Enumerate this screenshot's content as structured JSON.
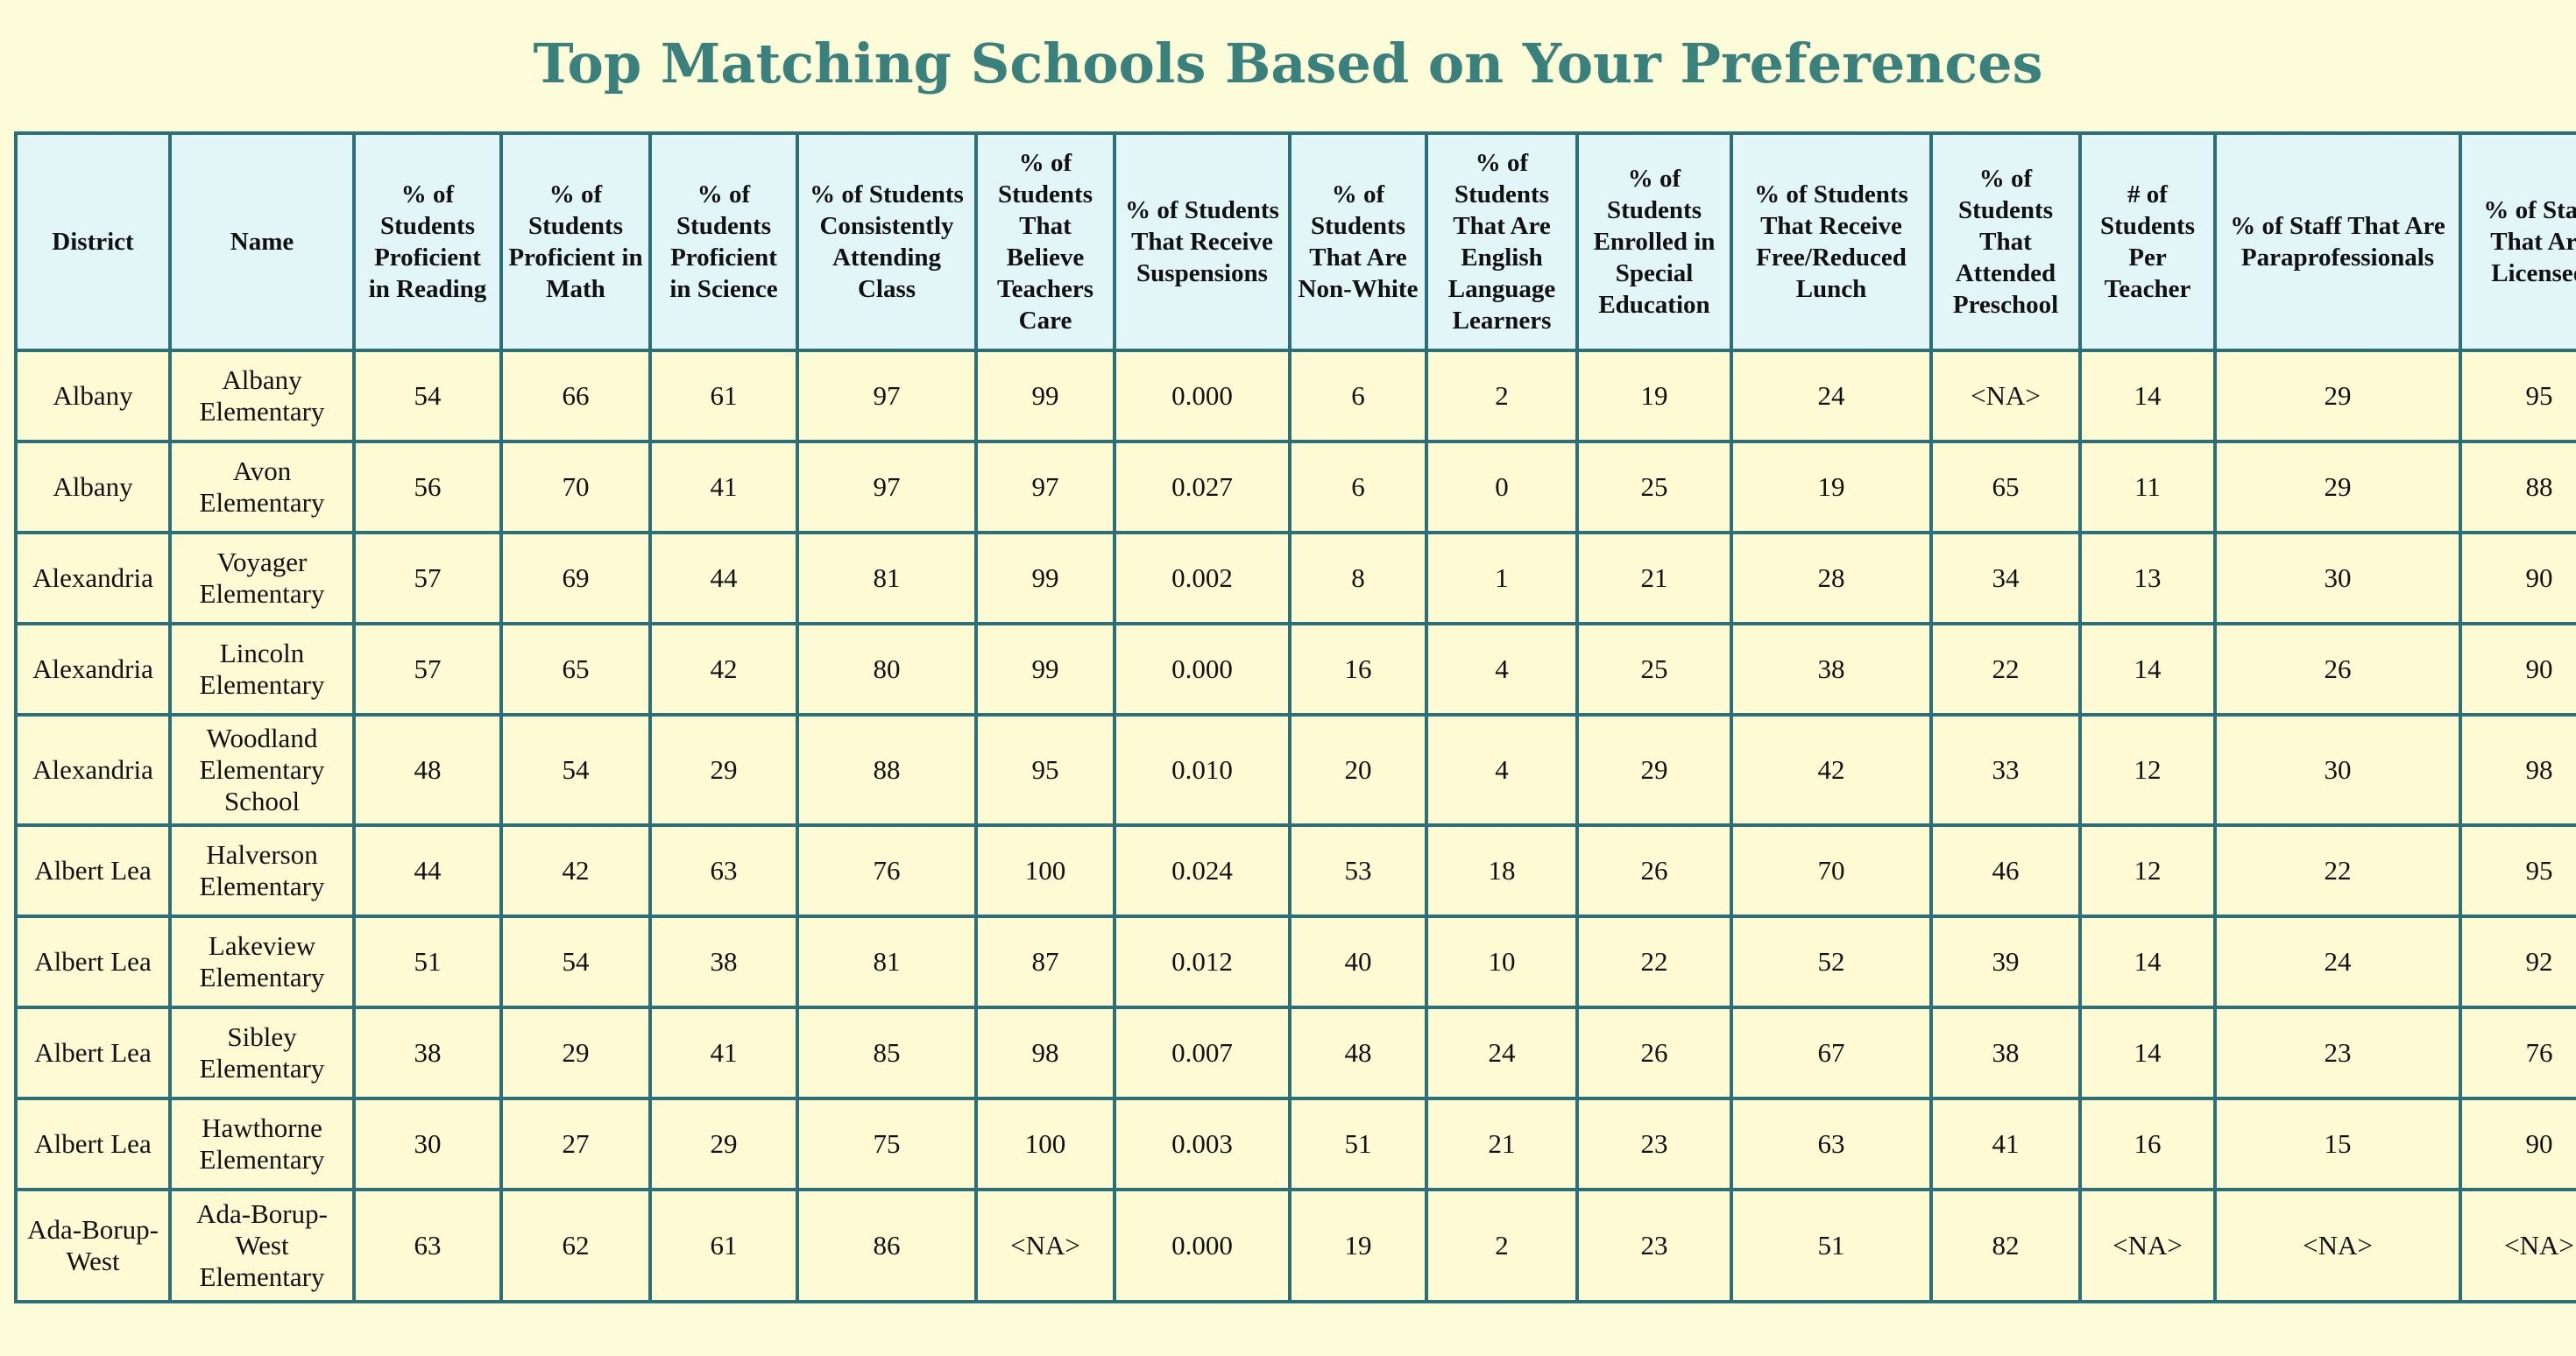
{
  "title": "Top Matching Schools Based on Your Preferences",
  "colors": {
    "background": "#fdfcd8",
    "title": "#3a807c",
    "header_background": "#e2f6f8",
    "border": "#2d6f79"
  },
  "table": {
    "columns": [
      "District",
      "Name",
      "% of Students Proficient in Reading",
      "% of Students Proficient in Math",
      "% of Students Proficient in Science",
      "% of Students Consistently Attending Class",
      "% of Students That Believe Teachers Care",
      "% of Students That Receive Suspensions",
      "% of Students That Are Non-White",
      "% of Students That Are English Language Learners",
      "% of Students Enrolled in Special Education",
      "% of Students That Receive Free/Reduced Lunch",
      "% of Students That Attended Preschool",
      "# of Students Per Teacher",
      "% of Staff That Are Paraprofessionals",
      "% of Staff That Are Licensed"
    ],
    "rows": [
      [
        "Albany",
        "Albany Elementary",
        "54",
        "66",
        "61",
        "97",
        "99",
        "0.000",
        "6",
        "2",
        "19",
        "24",
        "<NA>",
        "14",
        "29",
        "95"
      ],
      [
        "Albany",
        "Avon Elementary",
        "56",
        "70",
        "41",
        "97",
        "97",
        "0.027",
        "6",
        "0",
        "25",
        "19",
        "65",
        "11",
        "29",
        "88"
      ],
      [
        "Alexandria",
        "Voyager Elementary",
        "57",
        "69",
        "44",
        "81",
        "99",
        "0.002",
        "8",
        "1",
        "21",
        "28",
        "34",
        "13",
        "30",
        "90"
      ],
      [
        "Alexandria",
        "Lincoln Elementary",
        "57",
        "65",
        "42",
        "80",
        "99",
        "0.000",
        "16",
        "4",
        "25",
        "38",
        "22",
        "14",
        "26",
        "90"
      ],
      [
        "Alexandria",
        "Woodland Elementary School",
        "48",
        "54",
        "29",
        "88",
        "95",
        "0.010",
        "20",
        "4",
        "29",
        "42",
        "33",
        "12",
        "30",
        "98"
      ],
      [
        "Albert Lea",
        "Halverson Elementary",
        "44",
        "42",
        "63",
        "76",
        "100",
        "0.024",
        "53",
        "18",
        "26",
        "70",
        "46",
        "12",
        "22",
        "95"
      ],
      [
        "Albert Lea",
        "Lakeview Elementary",
        "51",
        "54",
        "38",
        "81",
        "87",
        "0.012",
        "40",
        "10",
        "22",
        "52",
        "39",
        "14",
        "24",
        "92"
      ],
      [
        "Albert Lea",
        "Sibley Elementary",
        "38",
        "29",
        "41",
        "85",
        "98",
        "0.007",
        "48",
        "24",
        "26",
        "67",
        "38",
        "14",
        "23",
        "76"
      ],
      [
        "Albert Lea",
        "Hawthorne Elementary",
        "30",
        "27",
        "29",
        "75",
        "100",
        "0.003",
        "51",
        "21",
        "23",
        "63",
        "41",
        "16",
        "15",
        "90"
      ],
      [
        "Ada-Borup-West",
        "Ada-Borup-West Elementary",
        "63",
        "62",
        "61",
        "86",
        "<NA>",
        "0.000",
        "19",
        "2",
        "23",
        "51",
        "82",
        "<NA>",
        "<NA>",
        "<NA>"
      ]
    ]
  }
}
